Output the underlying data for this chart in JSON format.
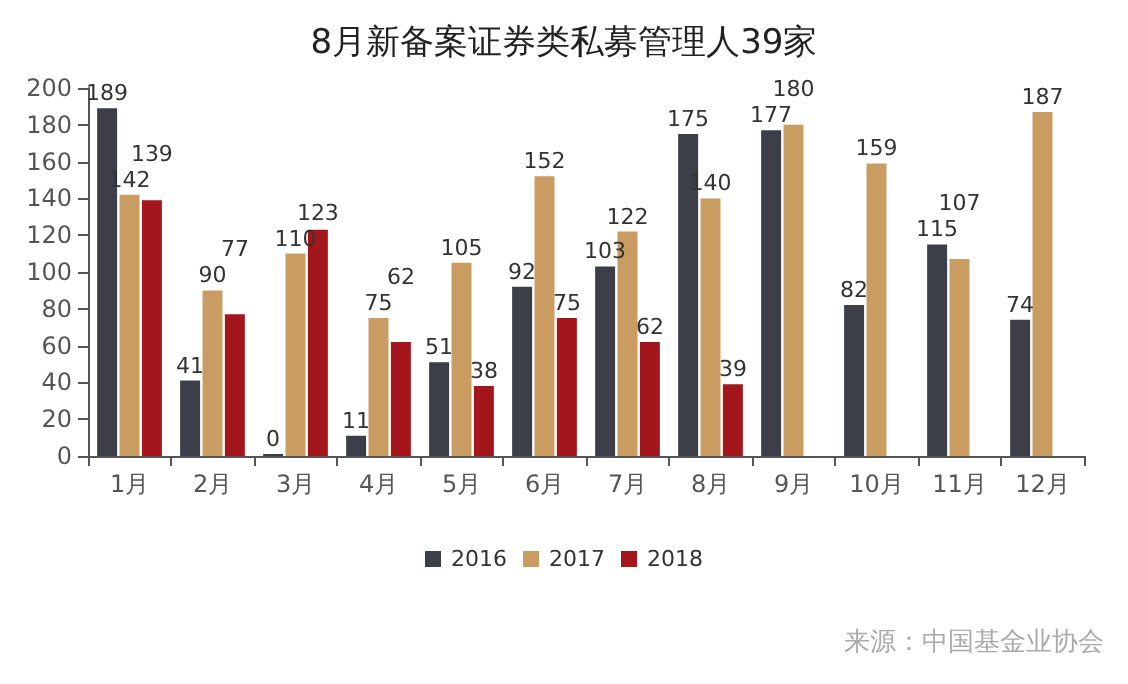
{
  "chart_data": {
    "type": "bar",
    "title": "8月新备案证券类私募管理人39家",
    "categories": [
      "1月",
      "2月",
      "3月",
      "4月",
      "5月",
      "6月",
      "7月",
      "8月",
      "9月",
      "10月",
      "11月",
      "12月"
    ],
    "series": [
      {
        "name": "2016",
        "color": "#3c3f47",
        "values": [
          189,
          41,
          0,
          11,
          51,
          92,
          103,
          175,
          177,
          82,
          115,
          74
        ]
      },
      {
        "name": "2017",
        "color": "#c99d62",
        "values": [
          142,
          90,
          110,
          75,
          105,
          152,
          122,
          140,
          180,
          159,
          107,
          187
        ]
      },
      {
        "name": "2018",
        "color": "#a3161c",
        "values": [
          139,
          77,
          123,
          62,
          38,
          75,
          62,
          39,
          null,
          null,
          null,
          null
        ]
      }
    ],
    "ylim": [
      0,
      200
    ],
    "yticks": [
      0,
      20,
      40,
      60,
      80,
      100,
      120,
      140,
      160,
      180,
      200
    ],
    "data_labels": true,
    "grid": false,
    "legend": "bottom",
    "annotations": [
      "来源：中国基金业协会"
    ]
  }
}
